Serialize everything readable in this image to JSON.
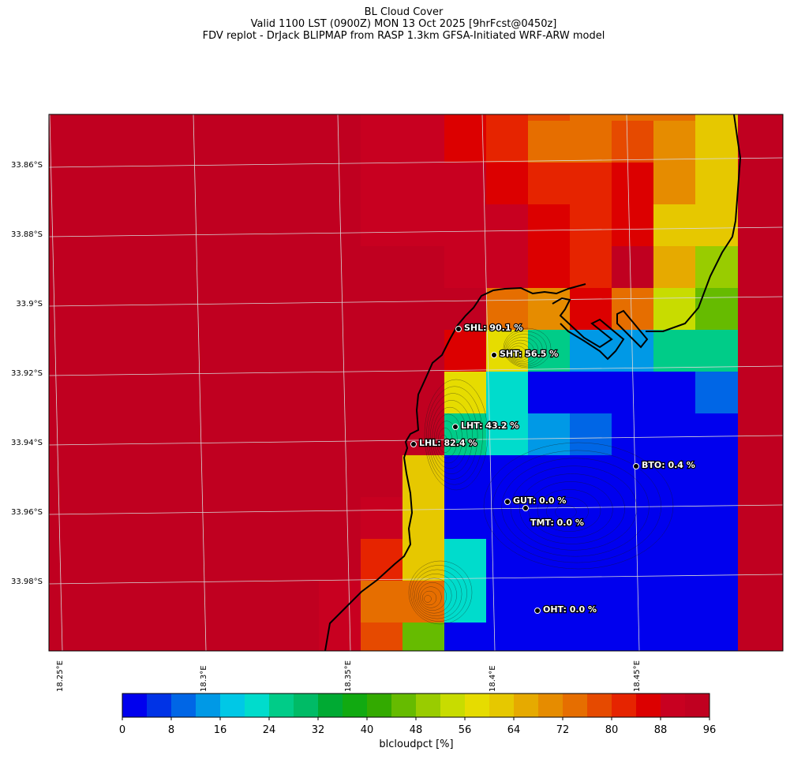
{
  "header": {
    "title": "BL Cloud Cover",
    "valid_line": "Valid 1100 LST (0900Z) MON 13 Oct 2025 [9hrFcst@0450z]",
    "source_line": "FDV replot - DrJack BLIPMAP from RASP 1.3km GFSA-Initiated WRF-ARW model"
  },
  "map": {
    "lon_ticks": [
      "18.25°E",
      "18.3°E",
      "18.35°E",
      "18.4°E",
      "18.45°E"
    ],
    "lat_ticks": [
      "33.86°S",
      "33.88°S",
      "33.9°S",
      "33.92°S",
      "33.94°S",
      "33.96°S",
      "33.98°S"
    ],
    "stations": [
      {
        "code": "SHL",
        "label": "SHL: 90.1 %",
        "value": 90.1
      },
      {
        "code": "SHT",
        "label": "SHT: 56.5 %",
        "value": 56.5
      },
      {
        "code": "LHT",
        "label": "LHT: 43.2 %",
        "value": 43.2
      },
      {
        "code": "LHL",
        "label": "LHL: 82.4 %",
        "value": 82.4
      },
      {
        "code": "BTO",
        "label": "BTO: 0.4 %",
        "value": 0.4
      },
      {
        "code": "GUT",
        "label": "GUT: 0.0 %",
        "value": 0.0
      },
      {
        "code": "TMT",
        "label": "TMT: 0.0 %",
        "value": 0.0
      },
      {
        "code": "OHT",
        "label": "OHT: 0.0 %",
        "value": 0.0
      }
    ],
    "grid_values": [
      [
        98,
        98,
        98,
        98,
        98,
        98,
        98,
        90,
        90,
        86,
        83,
        78,
        74,
        72,
        72,
        60
      ],
      [
        98,
        98,
        98,
        98,
        98,
        98,
        98,
        91,
        90,
        86,
        83,
        74,
        74,
        78,
        70,
        62
      ],
      [
        98,
        98,
        98,
        98,
        98,
        98,
        98,
        91,
        89,
        89,
        86,
        82,
        82,
        86,
        70,
        62
      ],
      [
        98,
        98,
        98,
        98,
        98,
        98,
        98,
        89,
        88,
        89,
        89,
        85,
        80,
        86,
        62,
        62
      ],
      [
        98,
        98,
        98,
        98,
        98,
        98,
        98,
        98,
        98,
        91,
        89,
        86,
        80,
        92,
        64,
        50
      ],
      [
        98,
        98,
        98,
        98,
        98,
        98,
        98,
        98,
        92,
        98,
        74,
        68,
        86,
        72,
        54,
        44
      ],
      [
        98,
        98,
        98,
        98,
        98,
        98,
        98,
        98,
        98,
        85,
        56,
        26,
        12,
        12,
        24,
        26
      ],
      [
        98,
        98,
        98,
        98,
        98,
        98,
        98,
        98,
        98,
        58,
        22,
        3,
        3,
        3,
        3,
        10
      ],
      [
        98,
        98,
        98,
        98,
        98,
        98,
        98,
        98,
        98,
        24,
        20,
        15,
        10,
        1,
        1,
        1
      ],
      [
        98,
        98,
        98,
        98,
        98,
        98,
        98,
        98,
        60,
        2,
        2,
        2,
        2,
        1,
        1,
        1
      ],
      [
        98,
        98,
        98,
        98,
        98,
        98,
        98,
        90,
        60,
        2,
        2,
        2,
        2,
        1,
        1,
        1
      ],
      [
        98,
        98,
        98,
        98,
        98,
        98,
        98,
        80,
        60,
        20,
        2,
        2,
        2,
        1,
        1,
        1
      ],
      [
        98,
        98,
        98,
        98,
        98,
        98,
        88,
        72,
        72,
        20,
        2,
        2,
        2,
        1,
        1,
        1
      ],
      [
        98,
        98,
        98,
        98,
        98,
        98,
        90,
        78,
        45,
        2,
        2,
        2,
        2,
        1,
        1,
        1
      ],
      [
        98,
        98,
        98,
        98,
        98,
        98,
        88,
        62,
        34,
        2,
        2,
        2,
        2,
        1,
        1,
        1
      ]
    ],
    "colors": {
      "bins": [
        "#0000ee",
        "#0033e6",
        "#0066e6",
        "#0099e6",
        "#00c8e6",
        "#00dccc",
        "#00cc88",
        "#00bb66",
        "#00aa33",
        "#11aa11",
        "#33aa00",
        "#66bb00",
        "#99cc00",
        "#c8dc00",
        "#e6dc00",
        "#e6c800",
        "#e6aa00",
        "#e68c00",
        "#e66e00",
        "#e64a00",
        "#e62400",
        "#dc0000",
        "#c80020",
        "#c00020"
      ]
    }
  },
  "colorbar": {
    "ticks": [
      "0",
      "8",
      "16",
      "24",
      "32",
      "40",
      "48",
      "56",
      "64",
      "72",
      "80",
      "88",
      "96"
    ],
    "label": "blcloudpct [%]"
  }
}
